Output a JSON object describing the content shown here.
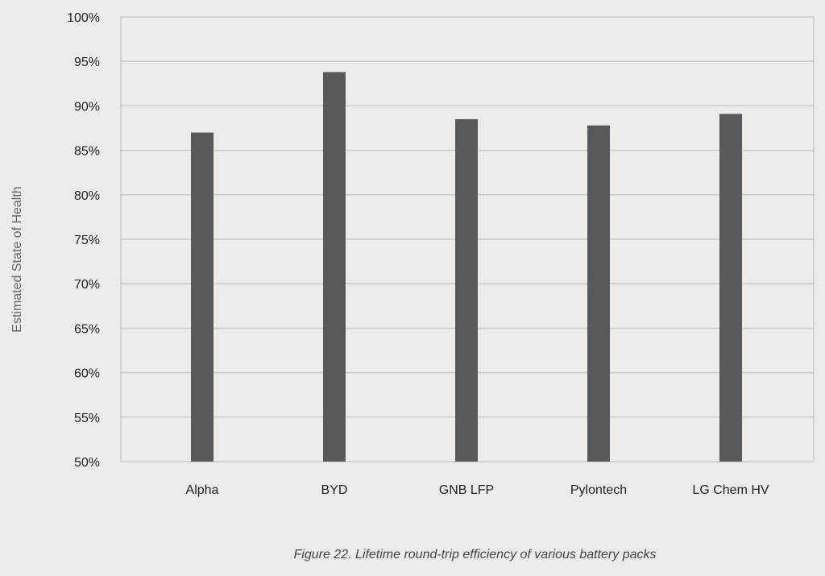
{
  "chart_data": {
    "type": "bar",
    "title": "",
    "caption": "Figure 22. Lifetime round-trip efficiency of various battery packs",
    "xlabel": "",
    "ylabel": "Estimated State of Health",
    "categories": [
      "Alpha",
      "BYD",
      "GNB LFP",
      "Pylontech",
      "LG Chem HV"
    ],
    "values": [
      87.0,
      93.8,
      88.5,
      87.8,
      89.1
    ],
    "ylim": [
      50,
      100
    ],
    "yticks": [
      "50%",
      "55%",
      "60%",
      "65%",
      "70%",
      "75%",
      "80%",
      "85%",
      "90%",
      "95%",
      "100%"
    ],
    "grid": true,
    "legend": null
  },
  "colors": {
    "background": "#ecebe9",
    "bar": "#58595b",
    "grid": "#c9c9c9",
    "tick_text": "#222222"
  }
}
